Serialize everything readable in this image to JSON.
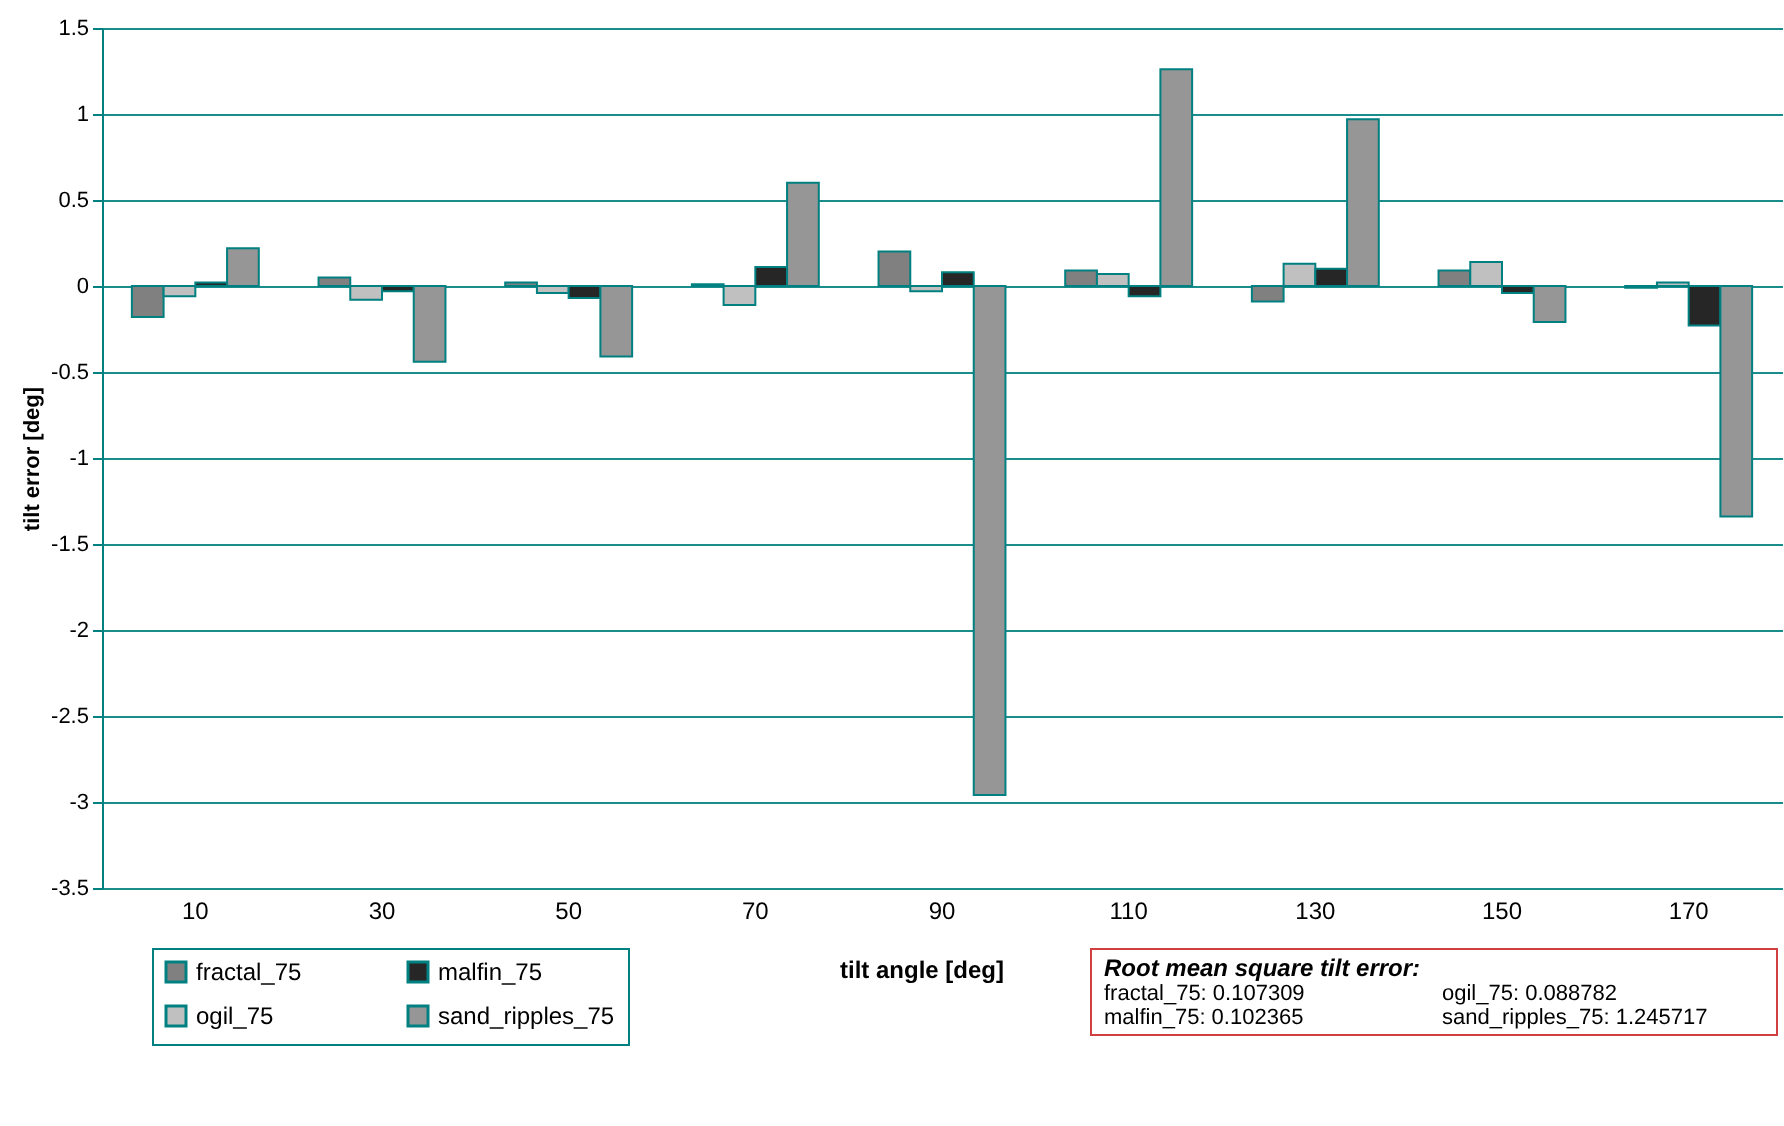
{
  "chart_data": {
    "type": "bar",
    "xlabel": "tilt angle [deg]",
    "ylabel": "tilt error [deg]",
    "categories": [
      "10",
      "30",
      "50",
      "70",
      "90",
      "110",
      "130",
      "150",
      "170"
    ],
    "series": [
      {
        "name": "fractal_75",
        "color": "#808080",
        "values": [
          -0.18,
          0.05,
          0.02,
          0.01,
          0.2,
          0.09,
          -0.09,
          0.09,
          -0.01
        ]
      },
      {
        "name": "ogil_75",
        "color": "#c0c0c0",
        "values": [
          -0.06,
          -0.08,
          -0.04,
          -0.11,
          -0.03,
          0.07,
          0.13,
          0.14,
          0.02
        ]
      },
      {
        "name": "malfin_75",
        "color": "#262626",
        "values": [
          0.02,
          -0.03,
          -0.07,
          0.11,
          0.08,
          -0.06,
          0.1,
          -0.04,
          -0.23
        ]
      },
      {
        "name": "sand_ripples_75",
        "color": "#969696",
        "values": [
          0.22,
          -0.44,
          -0.41,
          0.6,
          -2.96,
          1.26,
          0.97,
          -0.21,
          -1.34
        ]
      }
    ],
    "ylim": [
      -3.5,
      1.5
    ],
    "yticks": [
      -3.5,
      -3,
      -2.5,
      -2,
      -1.5,
      -1,
      -0.5,
      0,
      0.5,
      1,
      1.5
    ],
    "grid": "y",
    "legend": "bottom left",
    "annotations": [
      "Root mean square tilt error:",
      "fractal_75: 0.107309",
      "ogil_75: 0.088782",
      "malfin_75: 0.102365",
      "sand_ripples_75: 1.245717"
    ]
  }
}
